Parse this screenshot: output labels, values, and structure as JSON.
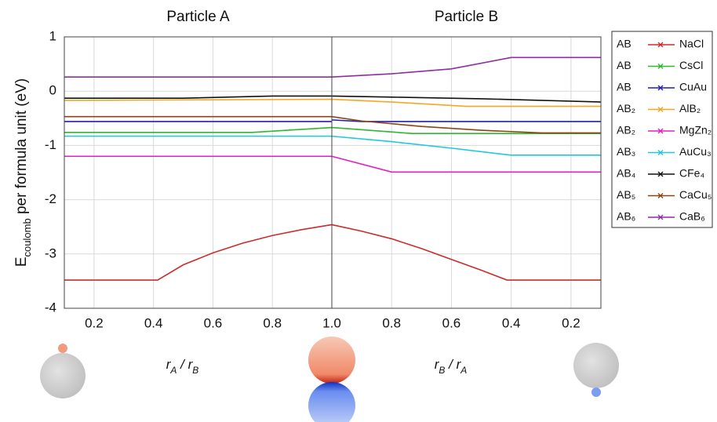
{
  "chart_data": [
    {
      "type": "line",
      "title": "Particle A",
      "x_label": [
        "r",
        "A",
        " / ",
        "r",
        "B"
      ],
      "y_label": [
        "E",
        "coulomb",
        " per formula unit (eV)"
      ],
      "xlim": [
        0.1,
        1.0
      ],
      "xticks": [
        0.2,
        0.4,
        0.6,
        0.8
      ],
      "ylim": [
        -4,
        1
      ],
      "yticks": [
        1,
        0,
        -1,
        -2,
        -3,
        -4
      ],
      "grid": true,
      "legend_prefixes": [
        "AB",
        "AB",
        "AB",
        "AB₂",
        "AB₂",
        "AB₃",
        "AB₄",
        "AB₅",
        "AB₆"
      ],
      "series": [
        {
          "name": "NaCl",
          "color": "#cc2b2b",
          "x": [
            0.1,
            0.414,
            0.5,
            0.6,
            0.7,
            0.8,
            0.9,
            1.0
          ],
          "values": [
            -3.48,
            -3.48,
            -3.2,
            -2.98,
            -2.8,
            -2.66,
            -2.55,
            -2.46
          ]
        },
        {
          "name": "CsCl",
          "color": "#2db82d",
          "x": [
            0.1,
            0.732,
            1.0
          ],
          "values": [
            -0.76,
            -0.76,
            -0.67
          ]
        },
        {
          "name": "CuAu",
          "color": "#1f1fb0",
          "x": [
            0.1,
            1.0
          ],
          "values": [
            -0.56,
            -0.56
          ]
        },
        {
          "name": "AlB₂",
          "color": "#f5a623",
          "x": [
            0.1,
            1.0
          ],
          "values": [
            -0.17,
            -0.15
          ]
        },
        {
          "name": "MgZn₂",
          "color": "#e020c0",
          "x": [
            0.1,
            1.0
          ],
          "values": [
            -1.2,
            -1.2
          ]
        },
        {
          "name": "AuCu₃",
          "color": "#1ec8e0",
          "x": [
            0.1,
            1.0
          ],
          "values": [
            -0.83,
            -0.83
          ]
        },
        {
          "name": "CFe₄",
          "color": "#111111",
          "x": [
            0.1,
            0.5,
            0.8,
            1.0
          ],
          "values": [
            -0.13,
            -0.13,
            -0.09,
            -0.09
          ]
        },
        {
          "name": "CaCu₅",
          "color": "#8b4513",
          "x": [
            0.1,
            1.0
          ],
          "values": [
            -0.47,
            -0.47
          ]
        },
        {
          "name": "CaB₆",
          "color": "#8e2ea0",
          "x": [
            0.1,
            1.0
          ],
          "values": [
            0.26,
            0.26
          ]
        }
      ]
    },
    {
      "type": "line",
      "title": "Particle B",
      "x_label": [
        "r",
        "B",
        " / ",
        "r",
        "A"
      ],
      "xlim": [
        1.0,
        0.1
      ],
      "xticks": [
        {
          "value": 1,
          "label": "1.0"
        },
        0.8,
        0.6,
        0.4,
        0.2
      ],
      "series": [
        {
          "color": "#cc2b2b",
          "x": [
            1.0,
            0.9,
            0.8,
            0.7,
            0.6,
            0.5,
            0.414,
            0.1
          ],
          "values": [
            -2.46,
            -2.58,
            -2.72,
            -2.9,
            -3.1,
            -3.3,
            -3.48,
            -3.48
          ]
        },
        {
          "color": "#2db82d",
          "x": [
            1.0,
            0.732,
            0.1
          ],
          "values": [
            -0.67,
            -0.78,
            -0.78
          ]
        },
        {
          "color": "#1f1fb0",
          "x": [
            1.0,
            0.9,
            0.1
          ],
          "values": [
            -0.53,
            -0.56,
            -0.56
          ]
        },
        {
          "color": "#f5a623",
          "x": [
            1.0,
            0.8,
            0.55,
            0.1
          ],
          "values": [
            -0.15,
            -0.2,
            -0.28,
            -0.28
          ]
        },
        {
          "color": "#e020c0",
          "x": [
            1.0,
            0.8,
            0.1
          ],
          "values": [
            -1.2,
            -1.49,
            -1.49
          ]
        },
        {
          "color": "#1ec8e0",
          "x": [
            1.0,
            0.8,
            0.6,
            0.4,
            0.1
          ],
          "values": [
            -0.83,
            -0.93,
            -1.05,
            -1.18,
            -1.18
          ]
        },
        {
          "color": "#111111",
          "x": [
            1.0,
            0.8,
            0.5,
            0.1
          ],
          "values": [
            -0.09,
            -0.11,
            -0.14,
            -0.2
          ]
        },
        {
          "color": "#8b4513",
          "x": [
            1.0,
            0.9,
            0.7,
            0.5,
            0.3,
            0.1
          ],
          "values": [
            -0.47,
            -0.55,
            -0.65,
            -0.72,
            -0.77,
            -0.77
          ]
        },
        {
          "color": "#8e2ea0",
          "x": [
            1.0,
            0.8,
            0.6,
            0.4,
            0.1
          ],
          "values": [
            0.26,
            0.32,
            0.41,
            0.62,
            0.62
          ]
        }
      ]
    }
  ]
}
